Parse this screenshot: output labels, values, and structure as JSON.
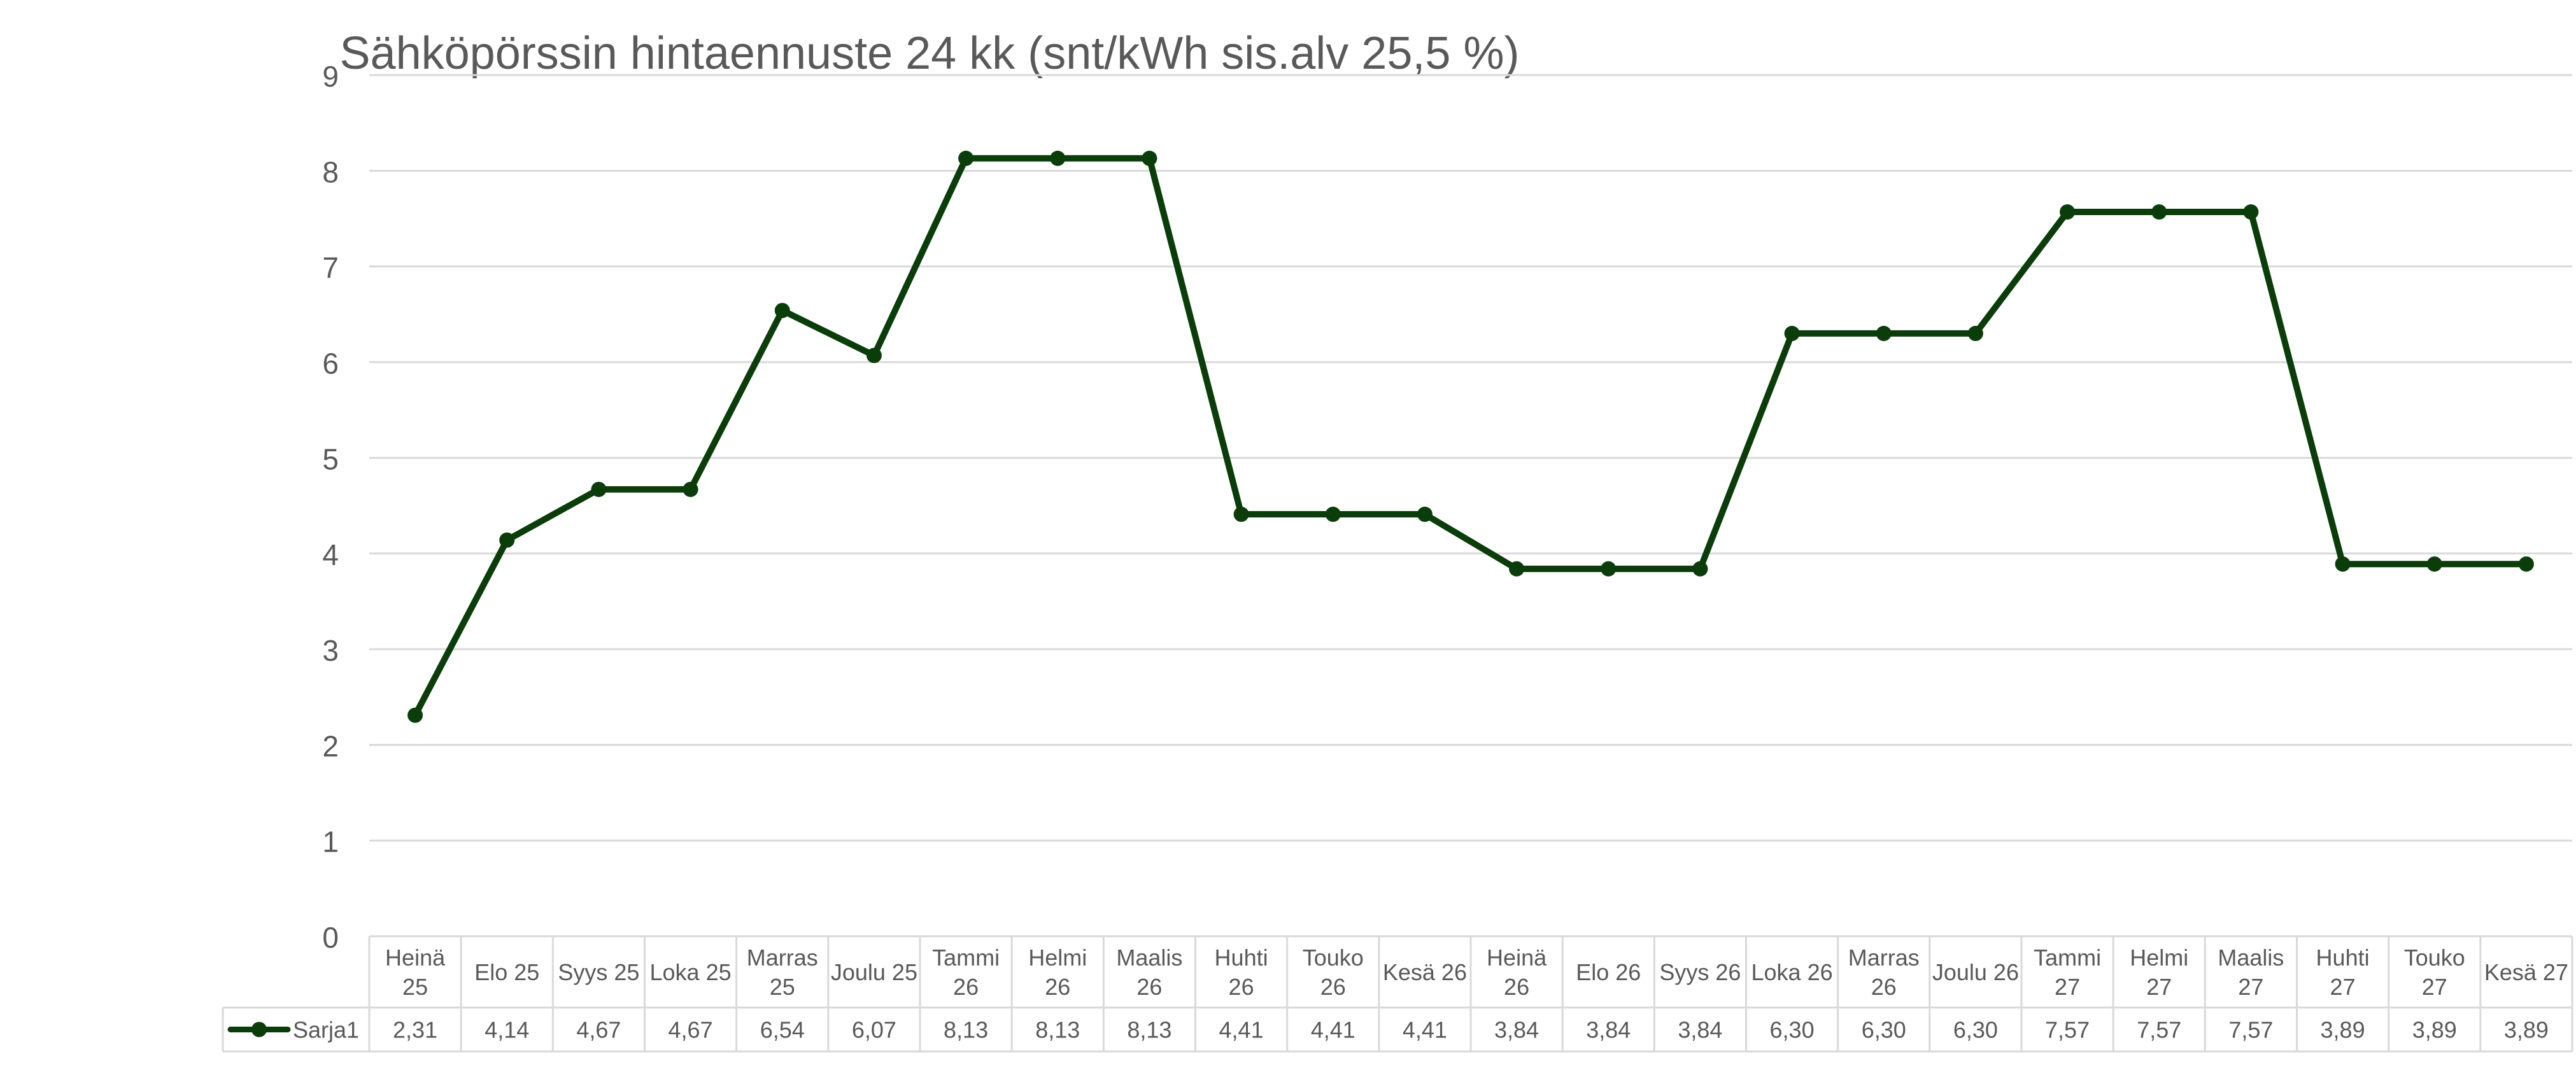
{
  "chart_data": {
    "type": "line",
    "title": "Sähköpörssin hintaennuste 24 kk (snt/kWh sis.alv 25,5 %)",
    "xlabel": "",
    "ylabel": "",
    "ylim": [
      0,
      9
    ],
    "yticks": [
      0,
      1,
      2,
      3,
      4,
      5,
      6,
      7,
      8,
      9
    ],
    "grid": true,
    "legend": "data-table-left",
    "categories": [
      [
        "Heinä",
        "25"
      ],
      [
        "Elo 25"
      ],
      [
        "Syys 25"
      ],
      [
        "Loka 25"
      ],
      [
        "Marras",
        "25"
      ],
      [
        "Joulu 25"
      ],
      [
        "Tammi",
        "26"
      ],
      [
        "Helmi",
        "26"
      ],
      [
        "Maalis",
        "26"
      ],
      [
        "Huhti",
        "26"
      ],
      [
        "Touko",
        "26"
      ],
      [
        "Kesä 26"
      ],
      [
        "Heinä",
        "26"
      ],
      [
        "Elo 26"
      ],
      [
        "Syys 26"
      ],
      [
        "Loka 26"
      ],
      [
        "Marras",
        "26"
      ],
      [
        "Joulu 26"
      ],
      [
        "Tammi",
        "27"
      ],
      [
        "Helmi",
        "27"
      ],
      [
        "Maalis",
        "27"
      ],
      [
        "Huhti",
        "27"
      ],
      [
        "Touko",
        "27"
      ],
      [
        "Kesä 27"
      ]
    ],
    "series": [
      {
        "name": "Sarja1",
        "color": "#0b3d0b",
        "values": [
          2.31,
          4.14,
          4.67,
          4.67,
          6.54,
          6.07,
          8.13,
          8.13,
          8.13,
          4.41,
          4.41,
          4.41,
          3.84,
          3.84,
          3.84,
          6.3,
          6.3,
          6.3,
          7.57,
          7.57,
          7.57,
          3.89,
          3.89,
          3.89
        ],
        "labels": [
          "2,31",
          "4,14",
          "4,67",
          "4,67",
          "6,54",
          "6,07",
          "8,13",
          "8,13",
          "8,13",
          "4,41",
          "4,41",
          "4,41",
          "3,84",
          "3,84",
          "3,84",
          "6,30",
          "6,30",
          "6,30",
          "7,57",
          "7,57",
          "7,57",
          "3,89",
          "3,89",
          "3,89"
        ]
      }
    ],
    "colors": {
      "line": "#0b3d0b",
      "grid": "#d9d9d9",
      "text": "#595959",
      "table_border": "#d9d9d9"
    }
  }
}
